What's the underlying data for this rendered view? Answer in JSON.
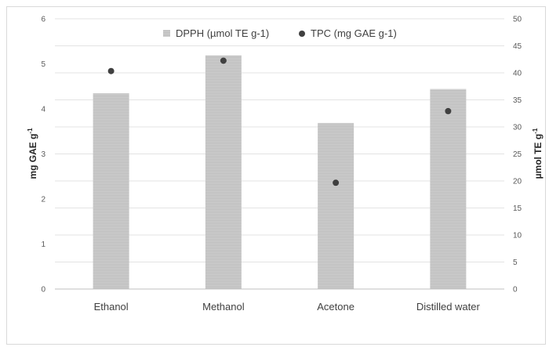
{
  "chart_data": {
    "type": "bar",
    "categories": [
      "Ethanol",
      "Methanol",
      "Acetone",
      "Distilled water"
    ],
    "series": [
      {
        "name": "DPPH (µmol TE g-1)",
        "kind": "bar",
        "axis": "right",
        "color": "#c0c0c0",
        "values": [
          36.2,
          43.2,
          30.7,
          37.0
        ]
      },
      {
        "name": "TPC (mg GAE g-1)",
        "kind": "scatter",
        "axis": "left",
        "color": "#404040",
        "values": [
          4.84,
          5.07,
          2.36,
          3.95
        ]
      }
    ],
    "y_left": {
      "label": "mg GAE g",
      "label_sup": "-1",
      "range": [
        0,
        6
      ],
      "ticks": [
        "0",
        "1",
        "2",
        "3",
        "4",
        "5",
        "6"
      ]
    },
    "y_right": {
      "label": "µmol TE g",
      "label_sup": "-1",
      "range": [
        0,
        50
      ],
      "ticks": [
        "0",
        "5",
        "10",
        "15",
        "20",
        "25",
        "30",
        "35",
        "40",
        "45",
        "50"
      ]
    },
    "grid": true,
    "legend_position": "top"
  }
}
